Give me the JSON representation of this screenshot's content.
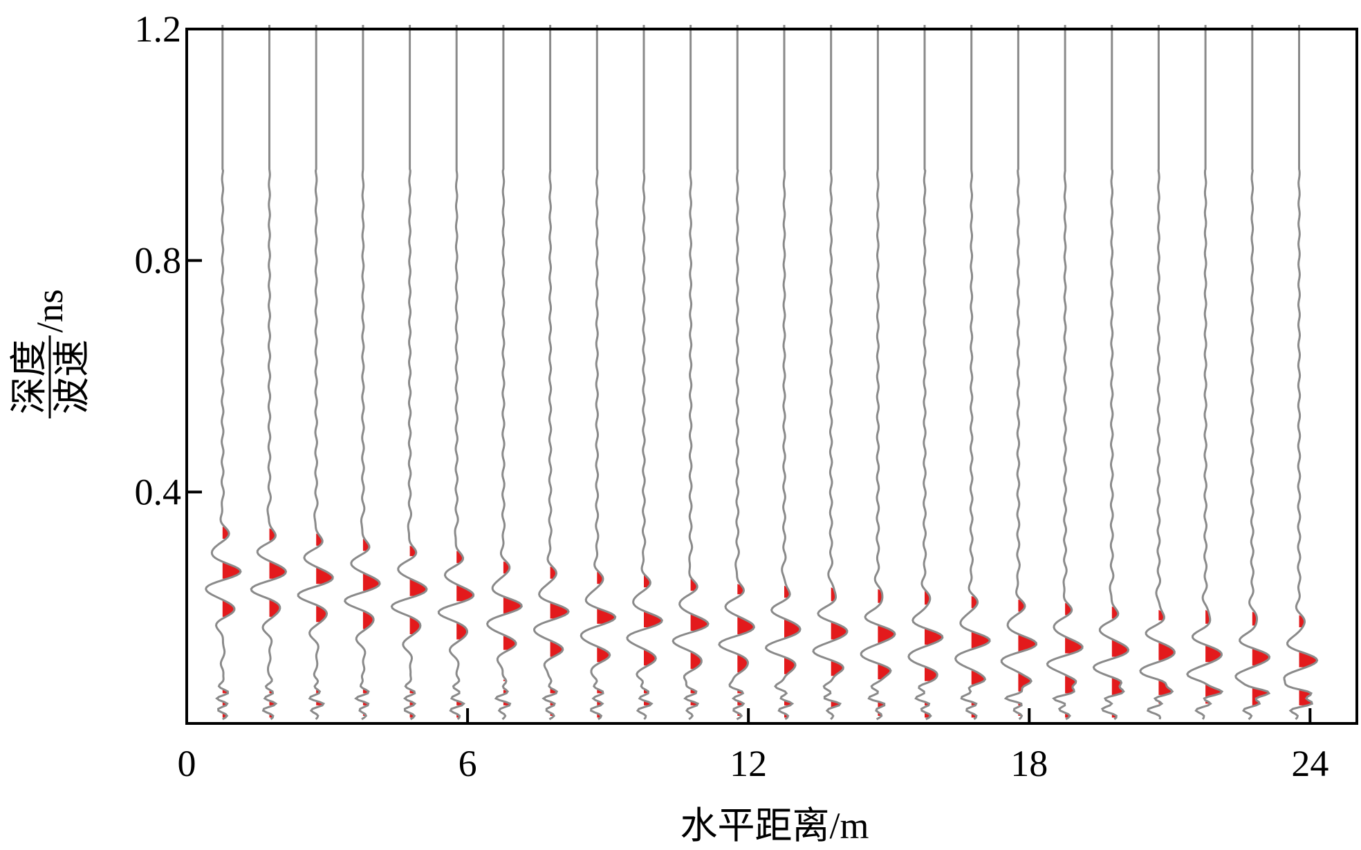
{
  "chart_data": {
    "type": "wiggle-trace",
    "title": "",
    "xlabel": "水平距离/m",
    "ylabel": {
      "numerator": "深度",
      "denominator": "波速",
      "unit": "/ns"
    },
    "xlim": [
      0,
      25
    ],
    "ylim": [
      0,
      1.2
    ],
    "x_ticks": [
      0,
      6,
      12,
      18,
      24
    ],
    "x_tick_labels": [
      "0",
      "6",
      "12",
      "18",
      "24"
    ],
    "y_ticks": [
      0.4,
      0.8,
      1.2
    ],
    "y_tick_labels": [
      "0.4",
      "0.8",
      "1.2"
    ],
    "grid": false,
    "legend": "none",
    "trace_count": 24,
    "trace_x_positions": [
      0.5,
      1.5,
      2.5,
      3.5,
      4.5,
      5.5,
      6.5,
      7.5,
      8.5,
      9.5,
      10.5,
      11.5,
      12.5,
      13.5,
      14.5,
      15.5,
      16.5,
      17.5,
      18.5,
      19.5,
      20.5,
      21.5,
      22.5,
      23.5
    ],
    "reflection_depth_ns": [
      0.24,
      0.24,
      0.23,
      0.22,
      0.21,
      0.2,
      0.18,
      0.17,
      0.16,
      0.155,
      0.15,
      0.145,
      0.14,
      0.135,
      0.13,
      0.125,
      0.12,
      0.115,
      0.11,
      0.105,
      0.1,
      0.095,
      0.09,
      0.085
    ],
    "colors": {
      "trace": "#8a8a8a",
      "positive_fill": "#e31a1c",
      "negative_fill": "#2a2a2a",
      "axis": "#000000"
    }
  }
}
